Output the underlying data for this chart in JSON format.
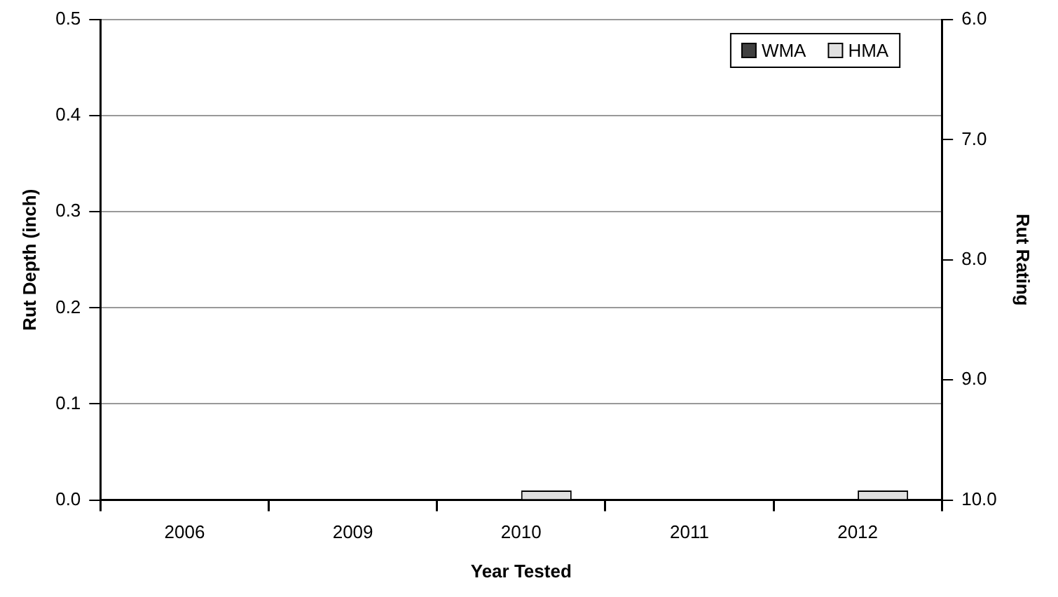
{
  "chart_data": {
    "type": "bar",
    "categories": [
      "2006",
      "2009",
      "2010",
      "2011",
      "2012"
    ],
    "series": [
      {
        "name": "WMA",
        "color": "#404040",
        "values": [
          0,
          0,
          0,
          0,
          0
        ]
      },
      {
        "name": "HMA",
        "color": "#e0e0e0",
        "values": [
          0,
          0,
          0.01,
          0,
          0.01
        ]
      }
    ],
    "xlabel": "Year Tested",
    "ylabel": "Rut Depth (inch)",
    "y2label": "Rut Rating",
    "ylim": [
      0,
      0.5
    ],
    "yticks": [
      {
        "value": 0,
        "label": "0.0"
      },
      {
        "value": 0.1,
        "label": "0.1"
      },
      {
        "value": 0.2,
        "label": "0.2"
      },
      {
        "value": 0.3,
        "label": "0.3"
      },
      {
        "value": 0.4,
        "label": "0.4"
      },
      {
        "value": 0.5,
        "label": "0.5"
      }
    ],
    "y2lim": [
      10,
      6
    ],
    "y2ticks": [
      {
        "value": 6,
        "label": "6.0"
      },
      {
        "value": 7,
        "label": "7.0"
      },
      {
        "value": 8,
        "label": "8.0"
      },
      {
        "value": 9,
        "label": "9.0"
      },
      {
        "value": 10,
        "label": "10.0"
      }
    ],
    "grid": "y",
    "legend": "top right"
  }
}
